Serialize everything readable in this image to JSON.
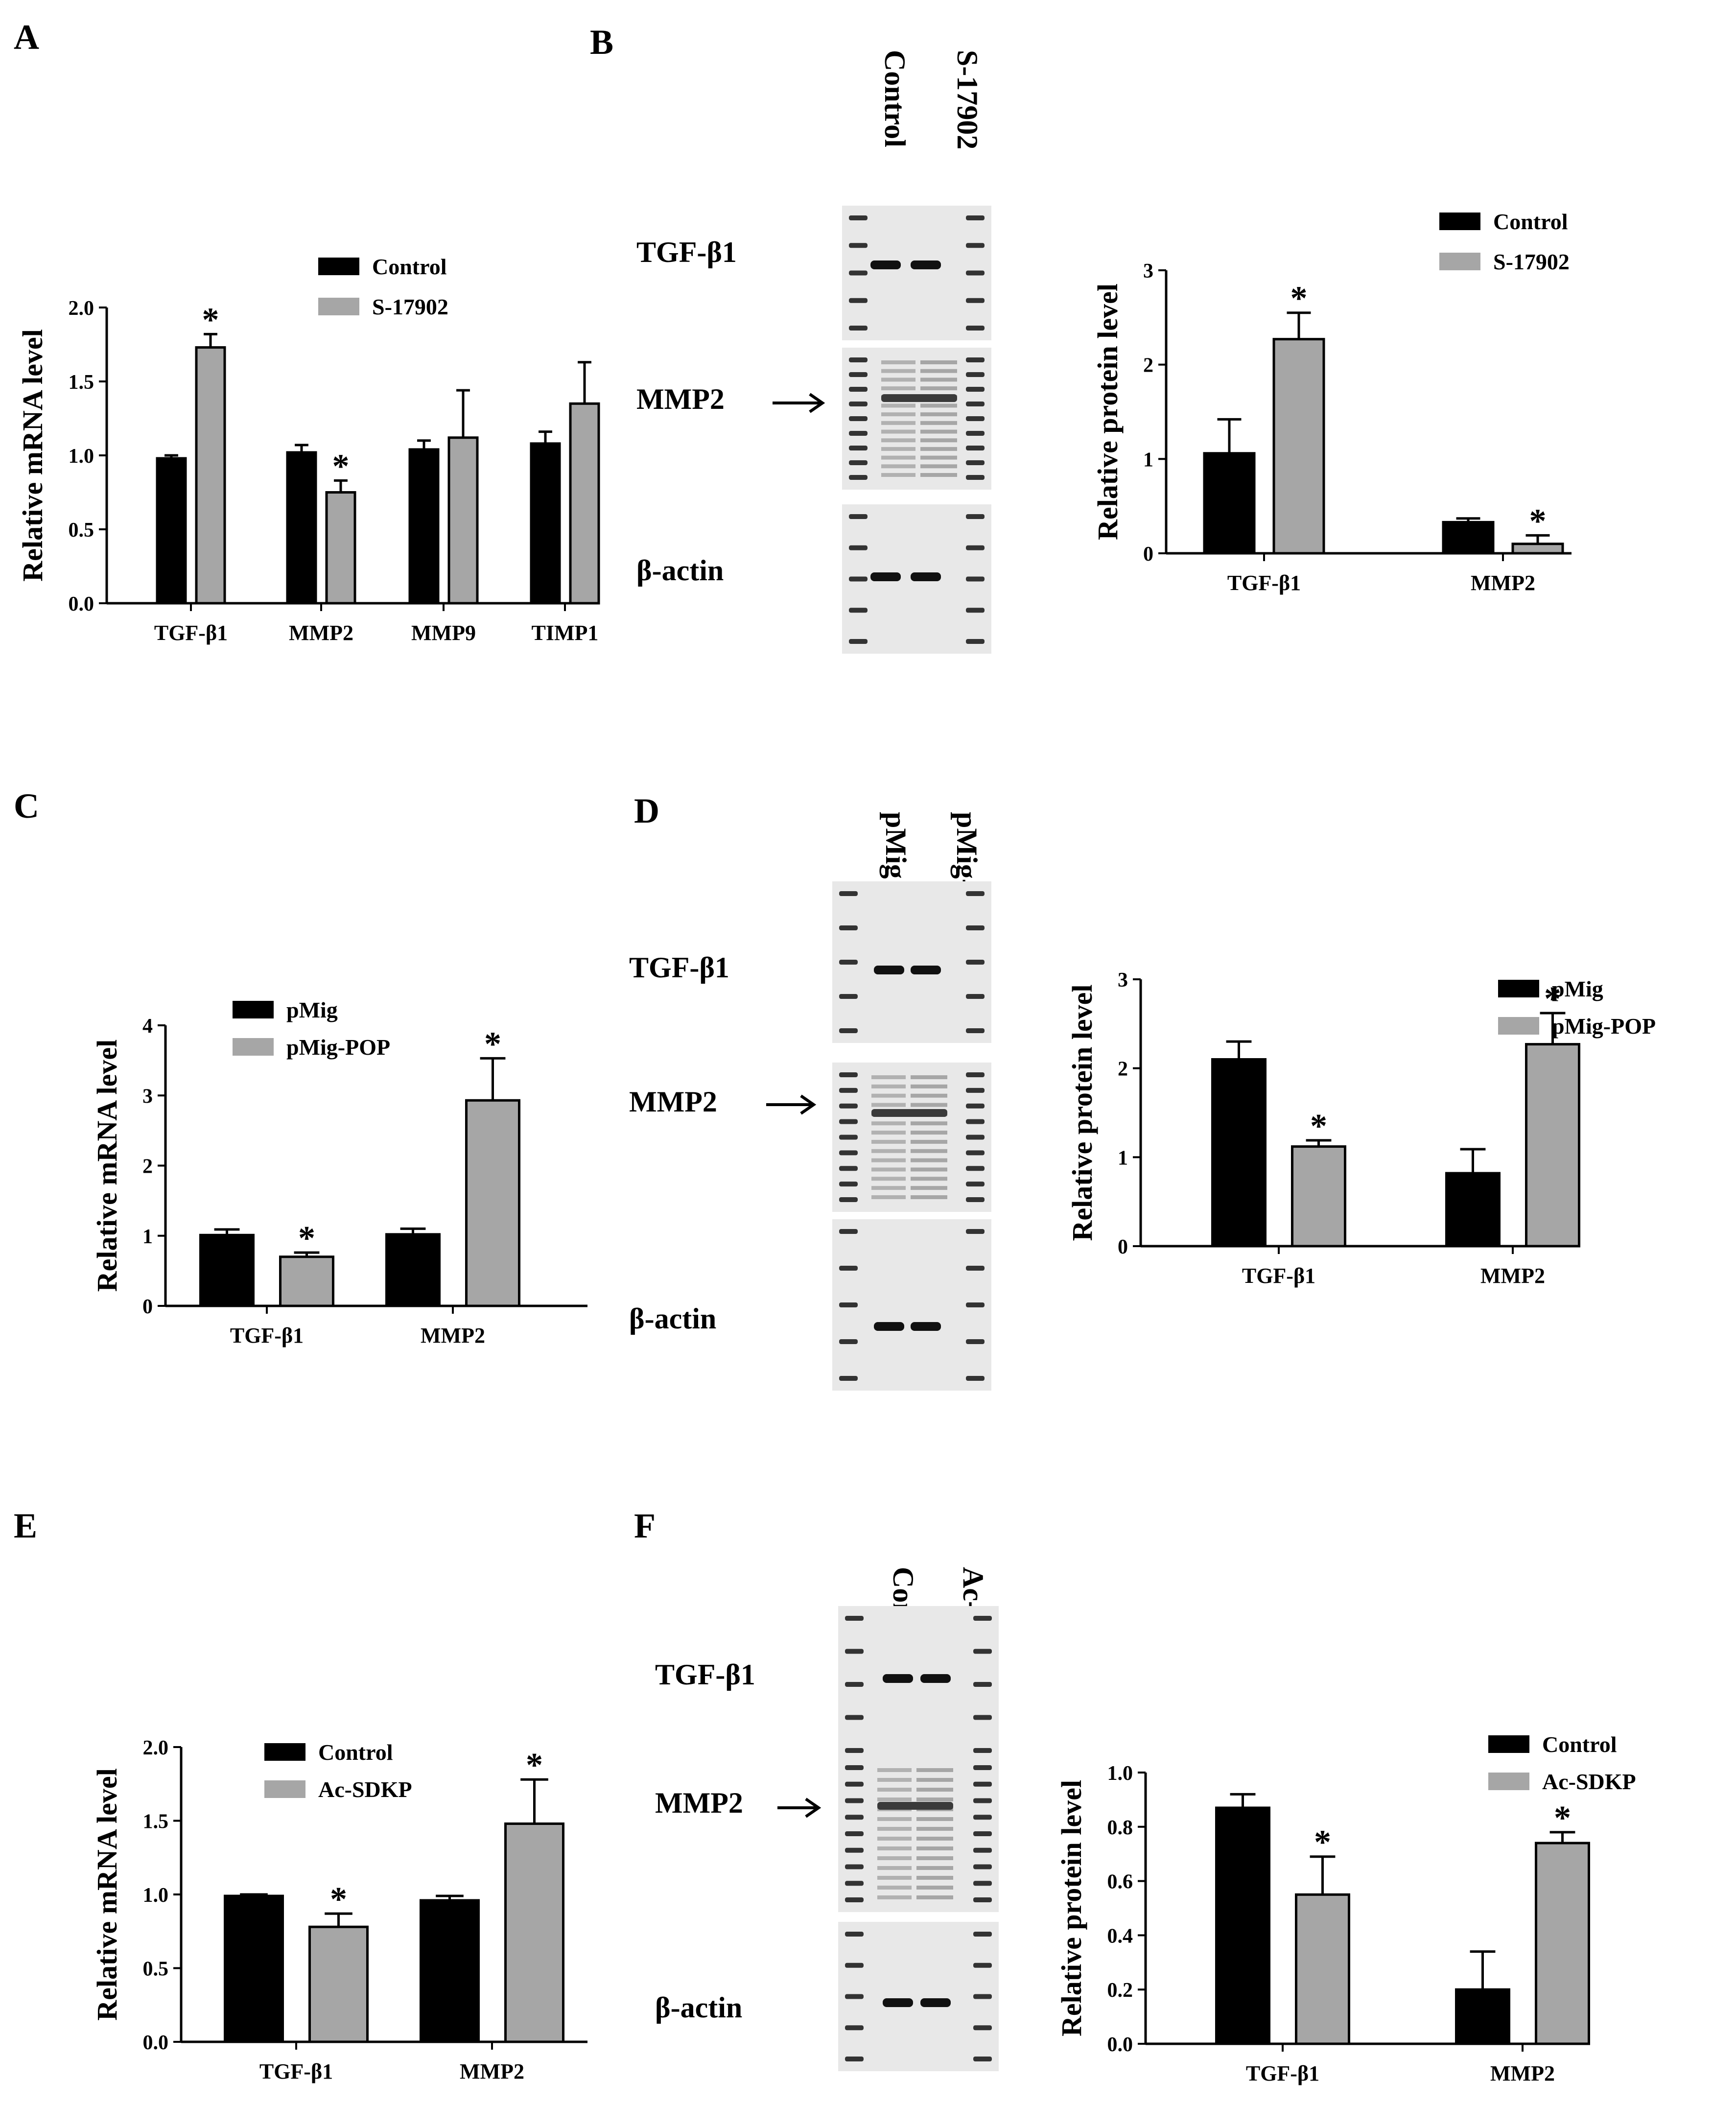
{
  "colors": {
    "control": "#000000",
    "treated": "#a6a6a6",
    "axis": "#000000"
  },
  "panels": [
    {
      "letter": "A"
    },
    {
      "letter": "B"
    },
    {
      "letter": "C"
    },
    {
      "letter": "D"
    },
    {
      "letter": "E"
    },
    {
      "letter": "F"
    }
  ],
  "blots": [
    {
      "lanes": [
        "Control",
        "S-17902"
      ],
      "bands": [
        "TGF-β1",
        "MMP2",
        "β-actin"
      ]
    },
    {
      "lanes": [
        "pMig",
        "pMig-POP"
      ],
      "bands": [
        "TGF-β1",
        "MMP2",
        "β-actin"
      ]
    },
    {
      "lanes": [
        "Control",
        "Ac-SDKP"
      ],
      "bands": [
        "TGF-β1",
        "MMP2",
        "β-actin"
      ]
    }
  ],
  "chart_data": [
    {
      "type": "bar",
      "panel": "A",
      "categories": [
        "TGF-β1",
        "MMP2",
        "MMP9",
        "TIMP1"
      ],
      "ylabel": "Relative mRNA level",
      "ylim": [
        0,
        2.0
      ],
      "yticks": [
        "0.0",
        "0.5",
        "1.0",
        "1.5",
        "2.0"
      ],
      "series": [
        {
          "name": "Control",
          "values": [
            0.98,
            1.02,
            1.04,
            1.08
          ],
          "errors": [
            0.02,
            0.05,
            0.06,
            0.08
          ],
          "sig": [
            false,
            false,
            false,
            false
          ]
        },
        {
          "name": "S-17902",
          "values": [
            1.73,
            0.75,
            1.12,
            1.35
          ],
          "errors": [
            0.09,
            0.08,
            0.32,
            0.28
          ],
          "sig": [
            true,
            true,
            false,
            false
          ]
        }
      ],
      "sig_mark": "*",
      "legend": "top-right"
    },
    {
      "type": "bar",
      "panel": "B",
      "categories": [
        "TGF-β1",
        "MMP2"
      ],
      "ylabel": "Relative protein level",
      "ylim": [
        0,
        3
      ],
      "yticks": [
        "0",
        "1",
        "2",
        "3"
      ],
      "series": [
        {
          "name": "Control",
          "values": [
            1.06,
            0.33
          ],
          "errors": [
            0.36,
            0.04
          ],
          "sig": [
            false,
            false
          ]
        },
        {
          "name": "S-17902",
          "values": [
            2.27,
            0.1
          ],
          "errors": [
            0.28,
            0.09
          ],
          "sig": [
            true,
            true
          ]
        }
      ],
      "sig_mark": "*",
      "legend": "top-right"
    },
    {
      "type": "bar",
      "panel": "C",
      "categories": [
        "TGF-β1",
        "MMP2"
      ],
      "ylabel": "Relative mRNA level",
      "ylim": [
        0,
        4
      ],
      "yticks": [
        "0",
        "1",
        "2",
        "3",
        "4"
      ],
      "series": [
        {
          "name": "pMig",
          "values": [
            1.01,
            1.02
          ],
          "errors": [
            0.08,
            0.08
          ],
          "sig": [
            false,
            false
          ]
        },
        {
          "name": "pMig-POP",
          "values": [
            0.7,
            2.93
          ],
          "errors": [
            0.06,
            0.6
          ],
          "sig": [
            true,
            true
          ]
        }
      ],
      "sig_mark": "*",
      "legend": "top-right"
    },
    {
      "type": "bar",
      "panel": "D",
      "categories": [
        "TGF-β1",
        "MMP2"
      ],
      "ylabel": "Relative protein level",
      "ylim": [
        0,
        3
      ],
      "yticks": [
        "0",
        "1",
        "2",
        "3"
      ],
      "series": [
        {
          "name": "pMig",
          "values": [
            2.1,
            0.82
          ],
          "errors": [
            0.2,
            0.27
          ],
          "sig": [
            false,
            false
          ]
        },
        {
          "name": "pMig-POP",
          "values": [
            1.12,
            2.27
          ],
          "errors": [
            0.07,
            0.35
          ],
          "sig": [
            true,
            true
          ]
        }
      ],
      "sig_mark": "*",
      "legend": "top-right"
    },
    {
      "type": "bar",
      "panel": "E",
      "categories": [
        "TGF-β1",
        "MMP2"
      ],
      "ylabel": "Relative mRNA level",
      "ylim": [
        0,
        2.0
      ],
      "yticks": [
        "0.0",
        "0.5",
        "1.0",
        "1.5",
        "2.0"
      ],
      "series": [
        {
          "name": "Control",
          "values": [
            0.99,
            0.96
          ],
          "errors": [
            0.01,
            0.03
          ],
          "sig": [
            false,
            false
          ]
        },
        {
          "name": "Ac-SDKP",
          "values": [
            0.78,
            1.48
          ],
          "errors": [
            0.09,
            0.3
          ],
          "sig": [
            true,
            true
          ]
        }
      ],
      "sig_mark": "*",
      "legend": "top-right"
    },
    {
      "type": "bar",
      "panel": "F",
      "categories": [
        "TGF-β1",
        "MMP2"
      ],
      "ylabel": "Relative protein level",
      "ylim": [
        0,
        1.0
      ],
      "yticks": [
        "0.0",
        "0.2",
        "0.4",
        "0.6",
        "0.8",
        "1.0"
      ],
      "series": [
        {
          "name": "Control",
          "values": [
            0.87,
            0.2
          ],
          "errors": [
            0.05,
            0.14
          ],
          "sig": [
            false,
            false
          ]
        },
        {
          "name": "Ac-SDKP",
          "values": [
            0.55,
            0.74
          ],
          "errors": [
            0.14,
            0.04
          ],
          "sig": [
            true,
            true
          ]
        }
      ],
      "sig_mark": "*",
      "legend": "top-right"
    }
  ]
}
